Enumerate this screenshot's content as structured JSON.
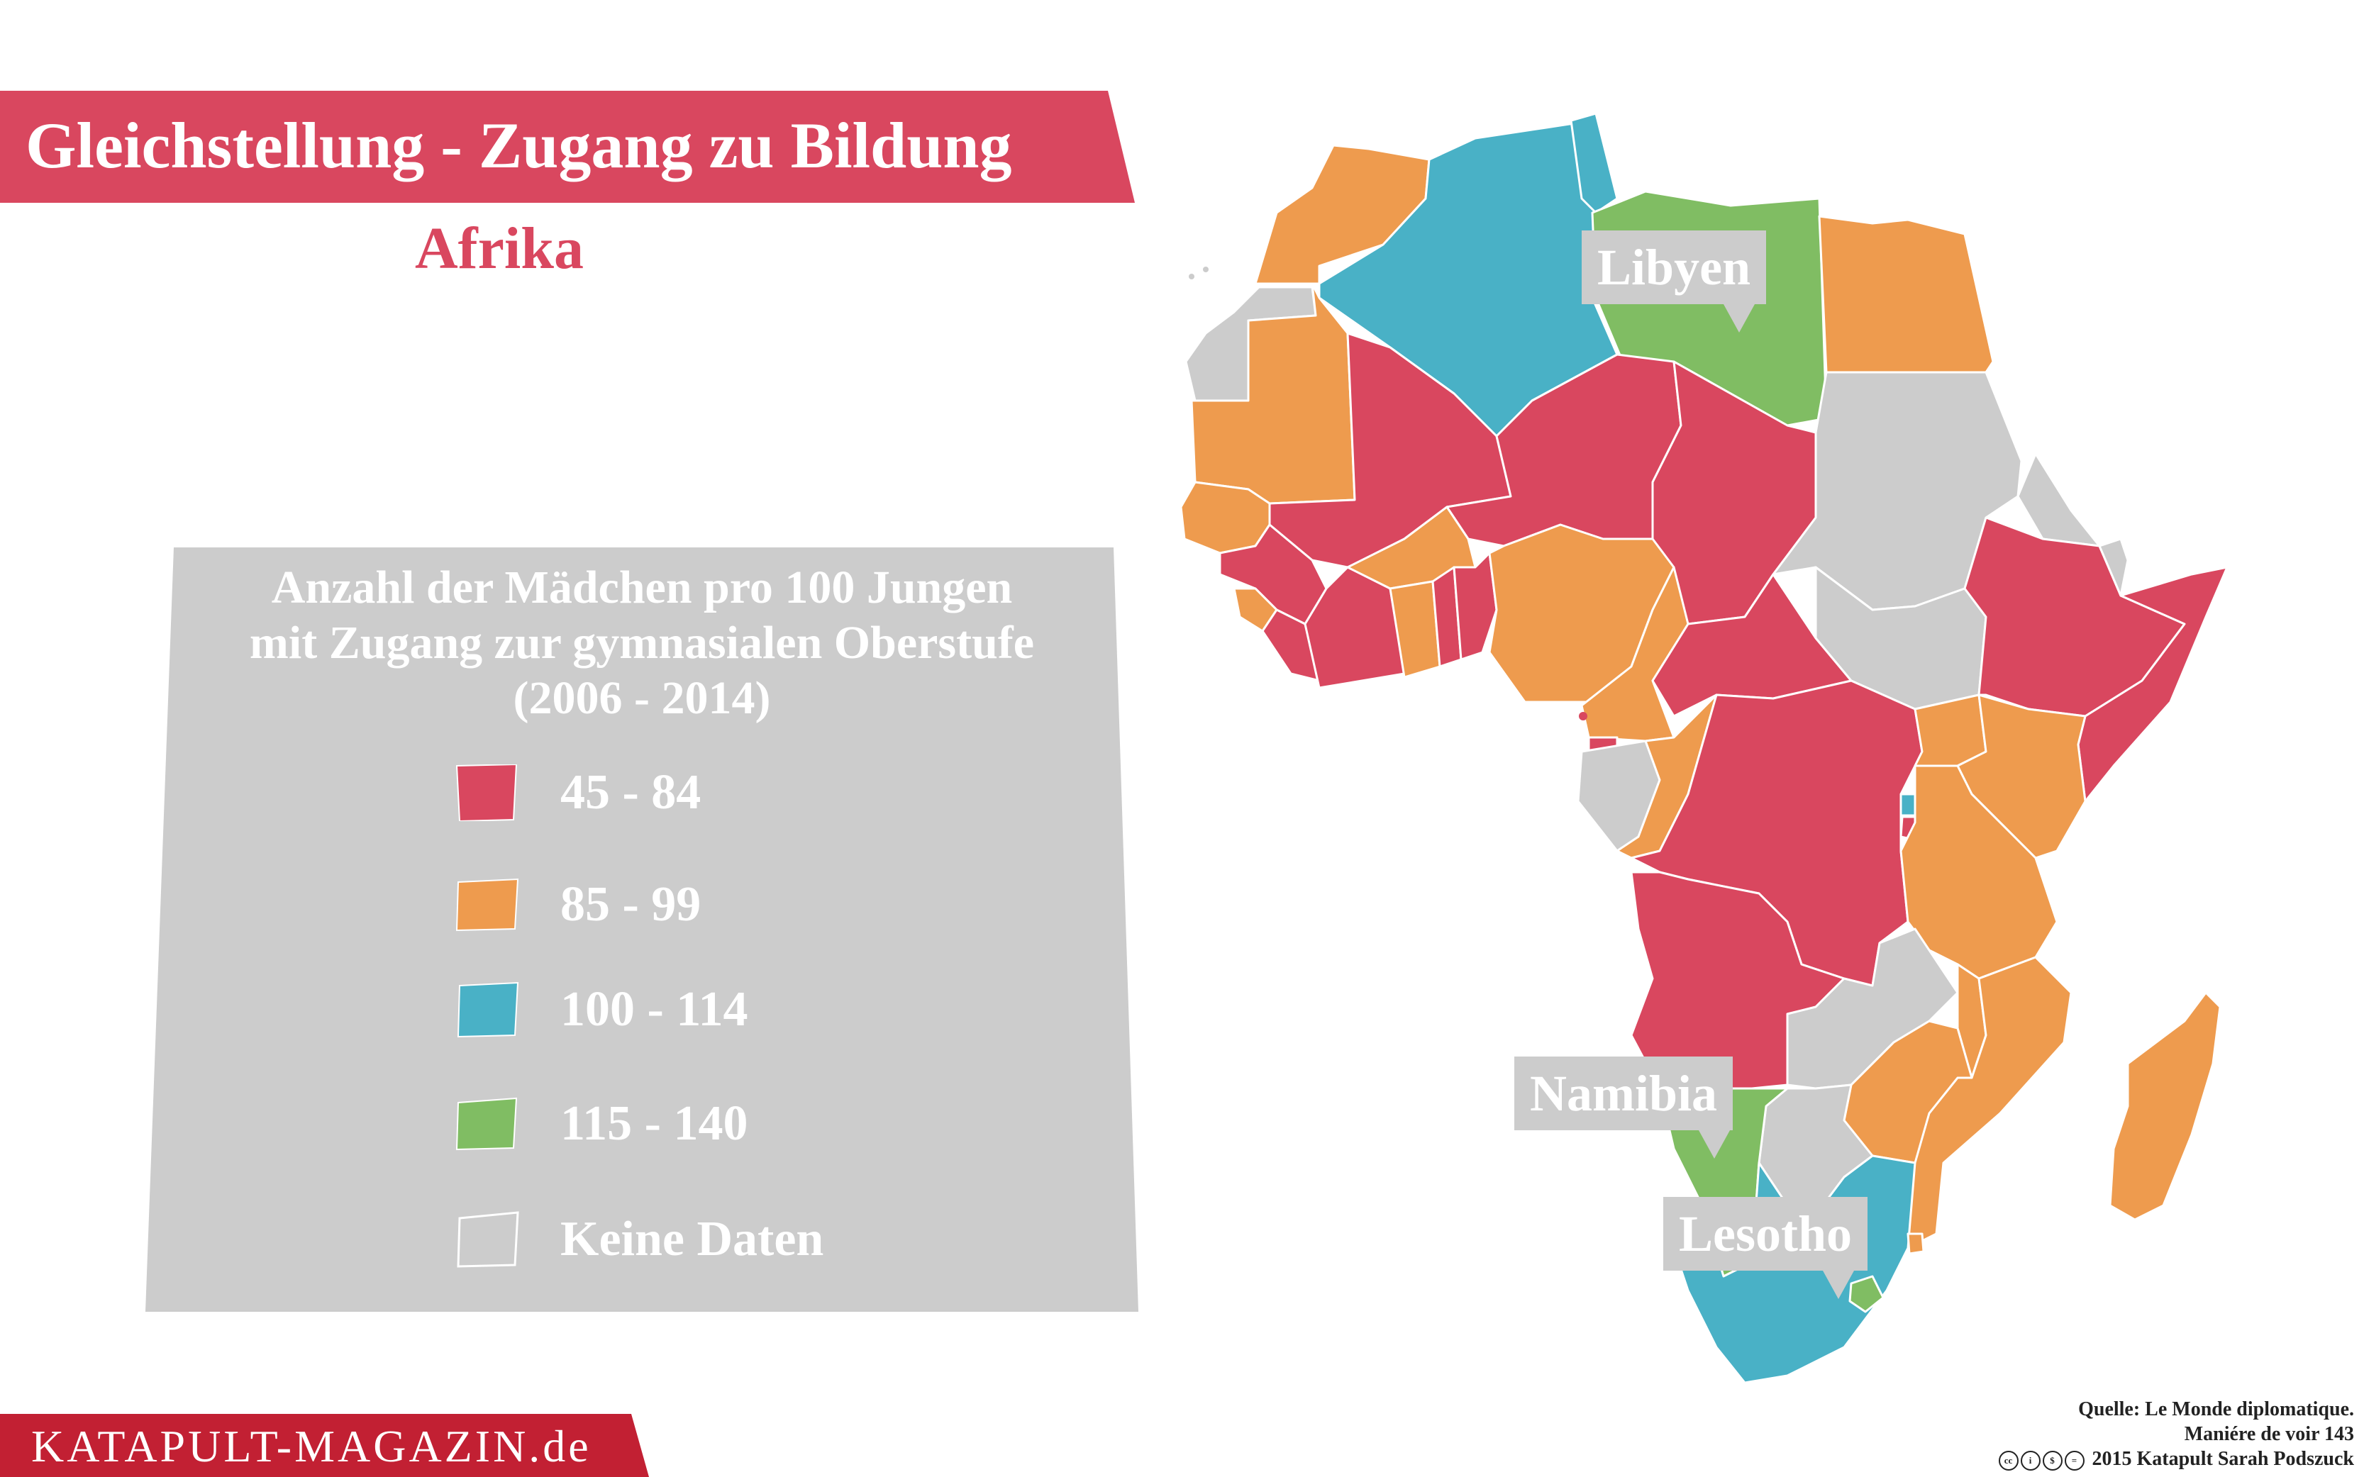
{
  "title": "Gleichstellung - Zugang zu Bildung",
  "subtitle": "Afrika",
  "legend": {
    "title_lines": [
      "Anzahl der Mädchen pro 100 Jungen",
      "mit Zugang zur gymnasialen Oberstufe",
      "(2006 - 2014)"
    ],
    "items": [
      {
        "label": "45 - 84",
        "color": "#d9475f"
      },
      {
        "label": "85 - 99",
        "color": "#ee9b4e"
      },
      {
        "label": "100 - 114",
        "color": "#49b1c6"
      },
      {
        "label": "115 - 140",
        "color": "#80bd63"
      },
      {
        "label": "Keine Daten",
        "color": "#cccccc"
      }
    ]
  },
  "callouts": {
    "libya": "Libyen",
    "namibia": "Namibia",
    "lesotho": "Lesotho"
  },
  "colors": {
    "red": "#d9475f",
    "orange": "#ee9b4e",
    "blue": "#49b1c6",
    "green": "#80bd63",
    "grey": "#cccccc",
    "footer": "#c22033"
  },
  "footer": {
    "brand": "KATAPULT-MAGAZIN.de"
  },
  "source": {
    "line1": "Quelle: Le Monde diplomatique.",
    "line2": "Maniére de voir 143",
    "line3": "2015 Katapult Sarah Podszuck"
  }
}
